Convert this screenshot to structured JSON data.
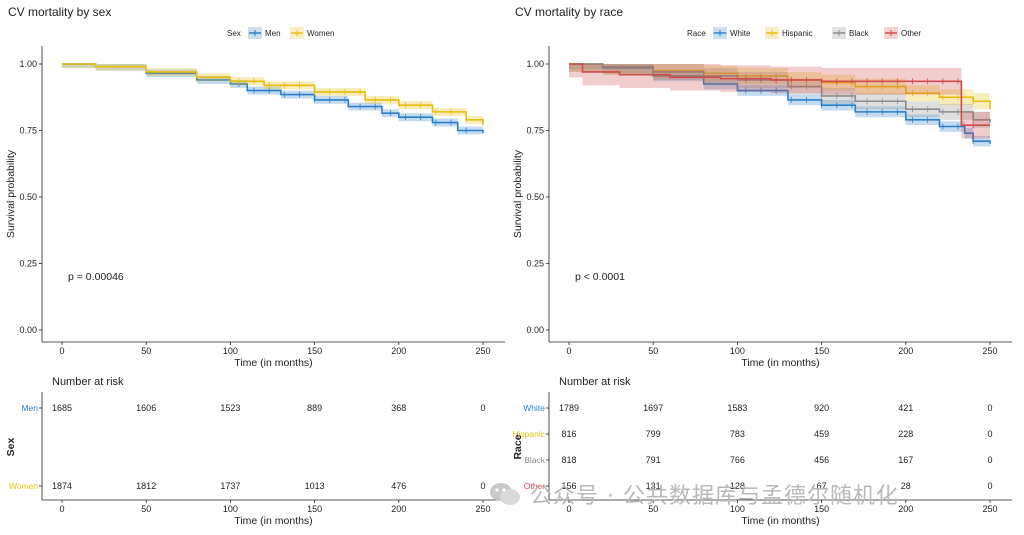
{
  "watermark": "公众号 · 公共数据库与孟德尔随机化",
  "colors": {
    "men": "#2b7fc9",
    "women": "#e8bd0f",
    "white": "#2b7fc9",
    "hispanic": "#e8bd0f",
    "black": "#8c8c8c",
    "other": "#d24b4b"
  },
  "chart_data": [
    {
      "type": "line",
      "subtype": "kaplan-meier",
      "title": "CV mortality by sex",
      "xlabel": "Time (in months)",
      "ylabel": "Survival probability",
      "xlim": [
        0,
        250
      ],
      "ylim": [
        0,
        1
      ],
      "xticks": [
        0,
        50,
        100,
        150,
        200,
        250
      ],
      "yticks": [
        0.0,
        0.25,
        0.5,
        0.75,
        1.0
      ],
      "ytick_labels": [
        "0.00",
        "0.25",
        "0.50",
        "0.75",
        "1.00"
      ],
      "legend_title": "Sex",
      "legend_position": "top",
      "annotation": "p = 0.00046",
      "series": [
        {
          "name": "Men",
          "color_key": "men",
          "x": [
            0,
            20,
            50,
            80,
            100,
            110,
            130,
            150,
            170,
            190,
            200,
            220,
            235,
            250
          ],
          "y": [
            1.0,
            0.99,
            0.965,
            0.94,
            0.925,
            0.9,
            0.885,
            0.865,
            0.84,
            0.815,
            0.8,
            0.78,
            0.75,
            0.74
          ],
          "ci": 0.015
        },
        {
          "name": "Women",
          "color_key": "women",
          "x": [
            0,
            20,
            50,
            80,
            100,
            120,
            150,
            180,
            200,
            220,
            240,
            250
          ],
          "y": [
            1.0,
            0.99,
            0.97,
            0.95,
            0.935,
            0.92,
            0.895,
            0.865,
            0.845,
            0.82,
            0.79,
            0.77
          ],
          "ci": 0.015
        }
      ]
    },
    {
      "type": "line",
      "subtype": "kaplan-meier",
      "title": "CV mortality by race",
      "xlabel": "Time (in months)",
      "ylabel": "Survival probability",
      "xlim": [
        0,
        250
      ],
      "ylim": [
        0,
        1
      ],
      "xticks": [
        0,
        50,
        100,
        150,
        200,
        250
      ],
      "yticks": [
        0.0,
        0.25,
        0.5,
        0.75,
        1.0
      ],
      "ytick_labels": [
        "0.00",
        "0.25",
        "0.50",
        "0.75",
        "1.00"
      ],
      "legend_title": "Race",
      "legend_position": "top",
      "annotation": "p < 0.0001",
      "series": [
        {
          "name": "White",
          "color_key": "white",
          "x": [
            0,
            20,
            50,
            80,
            100,
            130,
            150,
            170,
            200,
            220,
            235,
            240,
            250
          ],
          "y": [
            1.0,
            0.985,
            0.955,
            0.925,
            0.9,
            0.865,
            0.845,
            0.82,
            0.79,
            0.765,
            0.74,
            0.71,
            0.7
          ],
          "ci": 0.02
        },
        {
          "name": "Hispanic",
          "color_key": "hispanic",
          "x": [
            0,
            20,
            50,
            80,
            100,
            130,
            150,
            170,
            200,
            220,
            240,
            250
          ],
          "y": [
            1.0,
            0.99,
            0.975,
            0.965,
            0.955,
            0.94,
            0.93,
            0.915,
            0.89,
            0.875,
            0.86,
            0.83
          ],
          "ci": 0.03
        },
        {
          "name": "Black",
          "color_key": "black",
          "x": [
            0,
            20,
            50,
            80,
            100,
            130,
            150,
            170,
            200,
            220,
            240,
            250
          ],
          "y": [
            1.0,
            0.99,
            0.97,
            0.955,
            0.94,
            0.915,
            0.88,
            0.86,
            0.83,
            0.82,
            0.79,
            0.78
          ],
          "ci": 0.03
        },
        {
          "name": "Other",
          "color_key": "other",
          "x": [
            0,
            8,
            30,
            60,
            90,
            120,
            150,
            200,
            232,
            233,
            250
          ],
          "y": [
            1.0,
            0.97,
            0.96,
            0.95,
            0.945,
            0.94,
            0.935,
            0.935,
            0.935,
            0.77,
            0.77
          ],
          "ci": 0.05
        }
      ]
    }
  ],
  "risk_tables": [
    {
      "title": "Number at risk",
      "ylabel": "Sex",
      "xlabel": "Time (in months)",
      "times": [
        0,
        50,
        100,
        150,
        200,
        250
      ],
      "rows": [
        {
          "name": "Men",
          "color_key": "men",
          "values": [
            "1685",
            "1606",
            "1523",
            "889",
            "368",
            "0"
          ]
        },
        {
          "name": "Women",
          "color_key": "women",
          "values": [
            "1874",
            "1812",
            "1737",
            "1013",
            "476",
            "0"
          ]
        }
      ]
    },
    {
      "title": "Number at risk",
      "ylabel": "Race",
      "xlabel": "Time (in months)",
      "times": [
        0,
        50,
        100,
        150,
        200,
        250
      ],
      "rows": [
        {
          "name": "White",
          "color_key": "white",
          "values": [
            "1789",
            "1697",
            "1583",
            "920",
            "421",
            "0"
          ]
        },
        {
          "name": "Hispanic",
          "color_key": "hispanic",
          "values": [
            "816",
            "799",
            "783",
            "459",
            "228",
            "0"
          ]
        },
        {
          "name": "Black",
          "color_key": "black",
          "values": [
            "818",
            "791",
            "766",
            "456",
            "167",
            "0"
          ]
        },
        {
          "name": "Other",
          "color_key": "other",
          "values": [
            "156",
            "131",
            "128",
            "67",
            "28",
            "0"
          ]
        }
      ]
    }
  ]
}
